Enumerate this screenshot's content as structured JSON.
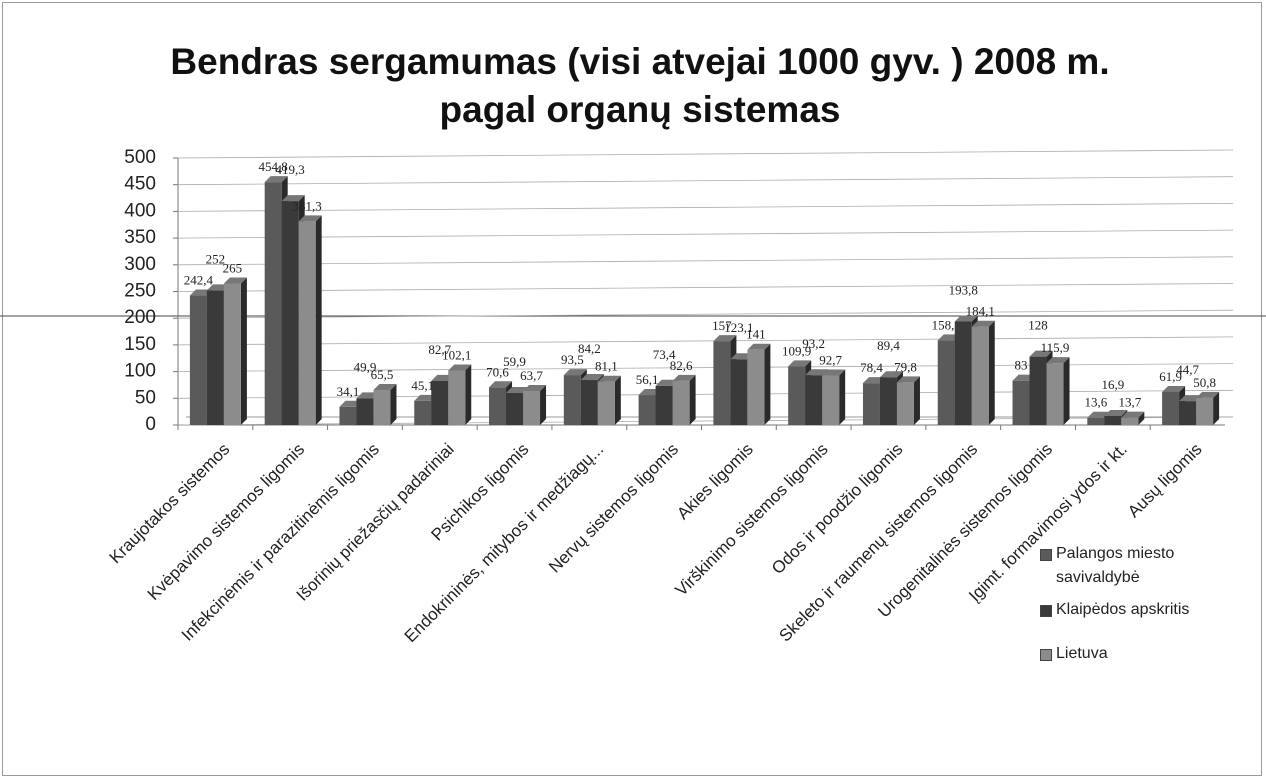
{
  "chart_data": {
    "type": "bar",
    "title": "Bendras sergamumas (visi atvejai 1000 gyv. ) 2008 m. pagal organų sistemas",
    "categories": [
      "Kraujotakos sistemos",
      "Kvėpavimo sistemos ligomis",
      "Infekcinėmis ir parazitinėmis ligomis",
      "Išorinių priežasčių padariniai",
      "Psichikos ligomis",
      "Endokrininės, mitybos ir medžiagų...",
      "Nervų sistemos ligomis",
      "Akies ligomis",
      "Virškinimo sistemos ligomis",
      "Odos ir poodžio ligomis",
      "Skeleto ir raumenų sistemos ligomis",
      "Urogenitalinės sistemos ligomis",
      "Įgimt. formavimosi ydos ir kt.",
      "Ausų ligomis"
    ],
    "series": [
      {
        "name": "Palangos miesto savivaldybė",
        "color": "#5a5a5a",
        "values": [
          242.4,
          454.8,
          34.1,
          45.1,
          70.6,
          93.5,
          56.1,
          157,
          109.9,
          78.4,
          158.5,
          83,
          13.6,
          61.9
        ],
        "value_labels": [
          "242,4",
          "454,8",
          "34,1",
          "45,1",
          "70,6",
          "93,5",
          "56,1",
          "157",
          "109,9",
          "78,4",
          "158,5",
          "83",
          "13,6",
          "61,9"
        ]
      },
      {
        "name": "Klaipėdos apskritis",
        "color": "#3a3a3a",
        "values": [
          252,
          419.3,
          49.9,
          82.7,
          59.9,
          84.2,
          73.4,
          123.1,
          93.2,
          89.4,
          193.8,
          128,
          16.9,
          44.7
        ],
        "value_labels": [
          "252",
          "419,3",
          "49,9",
          "82,7",
          "59,9",
          "84,2",
          "73,4",
          "123,1",
          "93,2",
          "89,4",
          "193,8",
          "128",
          "16,9",
          "44,7"
        ]
      },
      {
        "name": "Lietuva",
        "color": "#8c8c8c",
        "values": [
          265,
          381.3,
          65.5,
          102.1,
          63.7,
          81.1,
          82.6,
          141,
          92.7,
          79.8,
          184.1,
          115.9,
          13.7,
          50.8
        ],
        "value_labels": [
          "265",
          "381,3",
          "65,5",
          "102,1",
          "63,7",
          "81,1",
          "82,6",
          "141",
          "92,7",
          "79,8",
          "184,1",
          "115,9",
          "13,7",
          "50,8"
        ]
      }
    ],
    "ylim": [
      0,
      500
    ],
    "yticks": [
      0,
      50,
      100,
      150,
      200,
      250,
      300,
      350,
      400,
      450,
      500
    ],
    "grid": true
  }
}
